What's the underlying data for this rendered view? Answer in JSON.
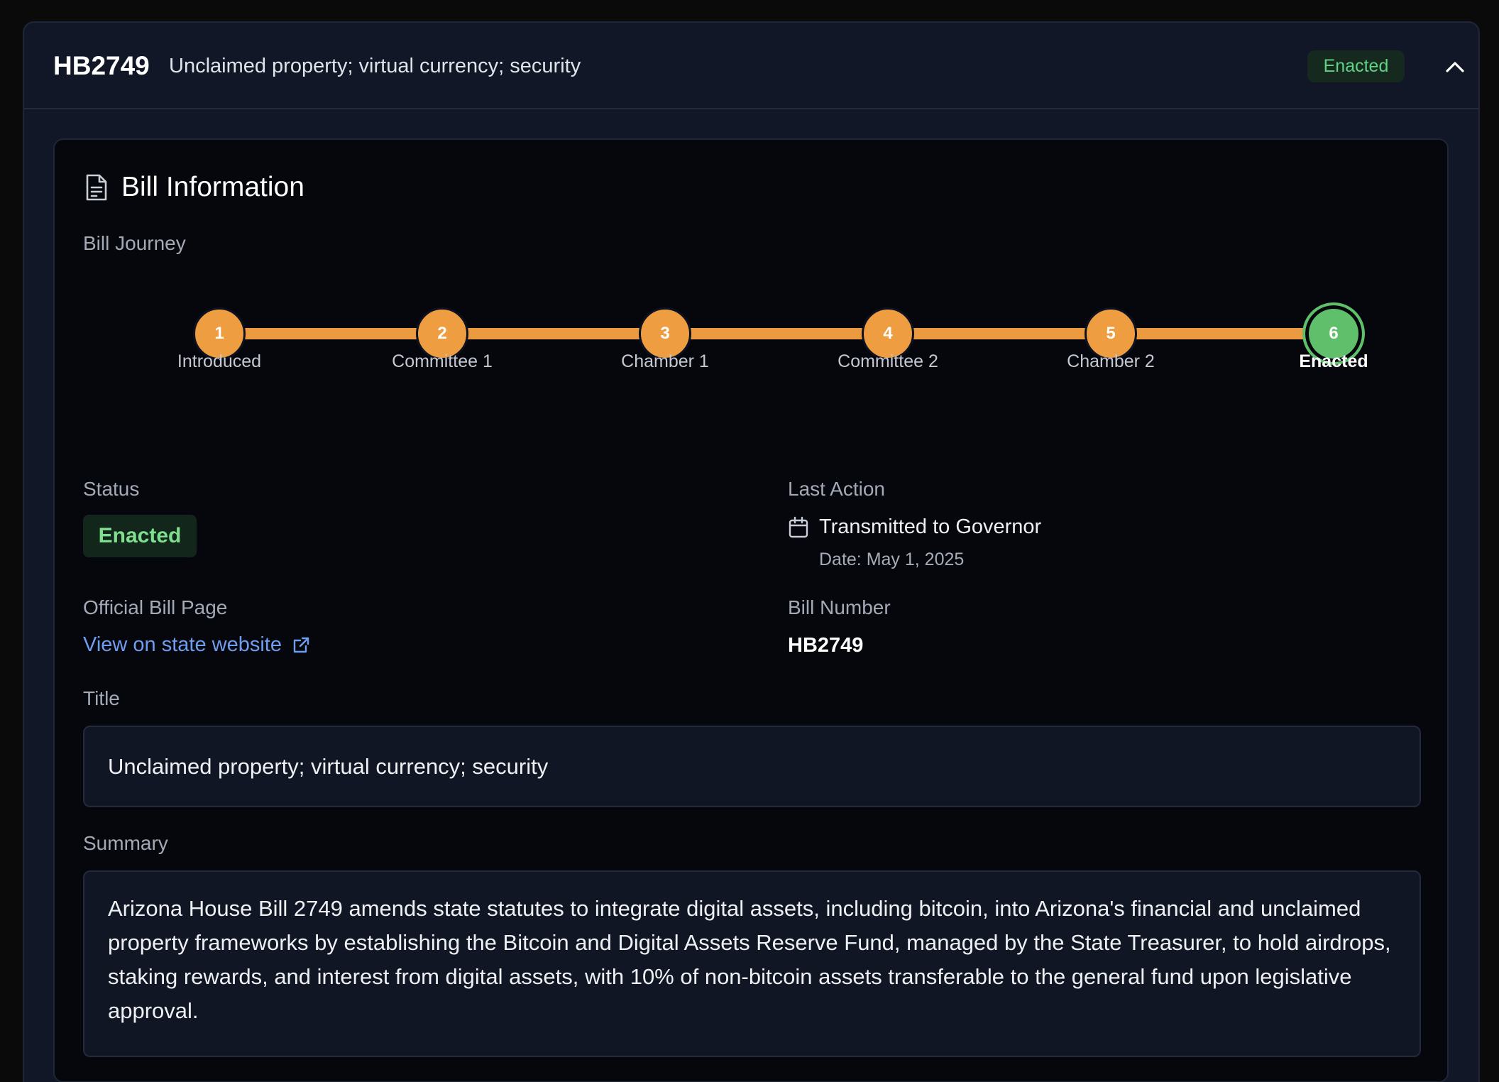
{
  "header": {
    "bill_id": "HB2749",
    "title": "Unclaimed property; virtual currency; security",
    "status_badge": "Enacted",
    "chevron_icon": "chevron-up-icon"
  },
  "bill_info": {
    "section_title": "Bill Information",
    "section_icon": "document-icon",
    "journey_label": "Bill Journey",
    "journey_steps": [
      {
        "number": "1",
        "label": "Introduced"
      },
      {
        "number": "2",
        "label": "Committee 1"
      },
      {
        "number": "3",
        "label": "Chamber 1"
      },
      {
        "number": "4",
        "label": "Committee 2"
      },
      {
        "number": "5",
        "label": "Chamber 2"
      },
      {
        "number": "6",
        "label": "Enacted"
      }
    ],
    "status_label": "Status",
    "status_value": "Enacted",
    "last_action_label": "Last Action",
    "last_action_text": "Transmitted to Governor",
    "last_action_date": "Date: May 1, 2025",
    "official_page_label": "Official Bill Page",
    "official_page_link": "View on state website",
    "bill_number_label": "Bill Number",
    "bill_number_value": "HB2749",
    "title_label": "Title",
    "title_value": "Unclaimed property; virtual currency; security",
    "summary_label": "Summary",
    "summary_value": "Arizona House Bill 2749 amends state statutes to integrate digital assets, including bitcoin, into Arizona's financial and unclaimed property frameworks by establishing the Bitcoin and Digital Assets Reserve Fund, managed by the State Treasurer, to hold airdrops, staking rewards, and interest from digital assets, with 10% of non-bitcoin assets transferable to the general fund upon legislative approval."
  },
  "colors": {
    "step_pending": "#ee9d40",
    "step_complete": "#5fbf6a",
    "link": "#6f9df0",
    "badge_text": "#5fd383"
  }
}
